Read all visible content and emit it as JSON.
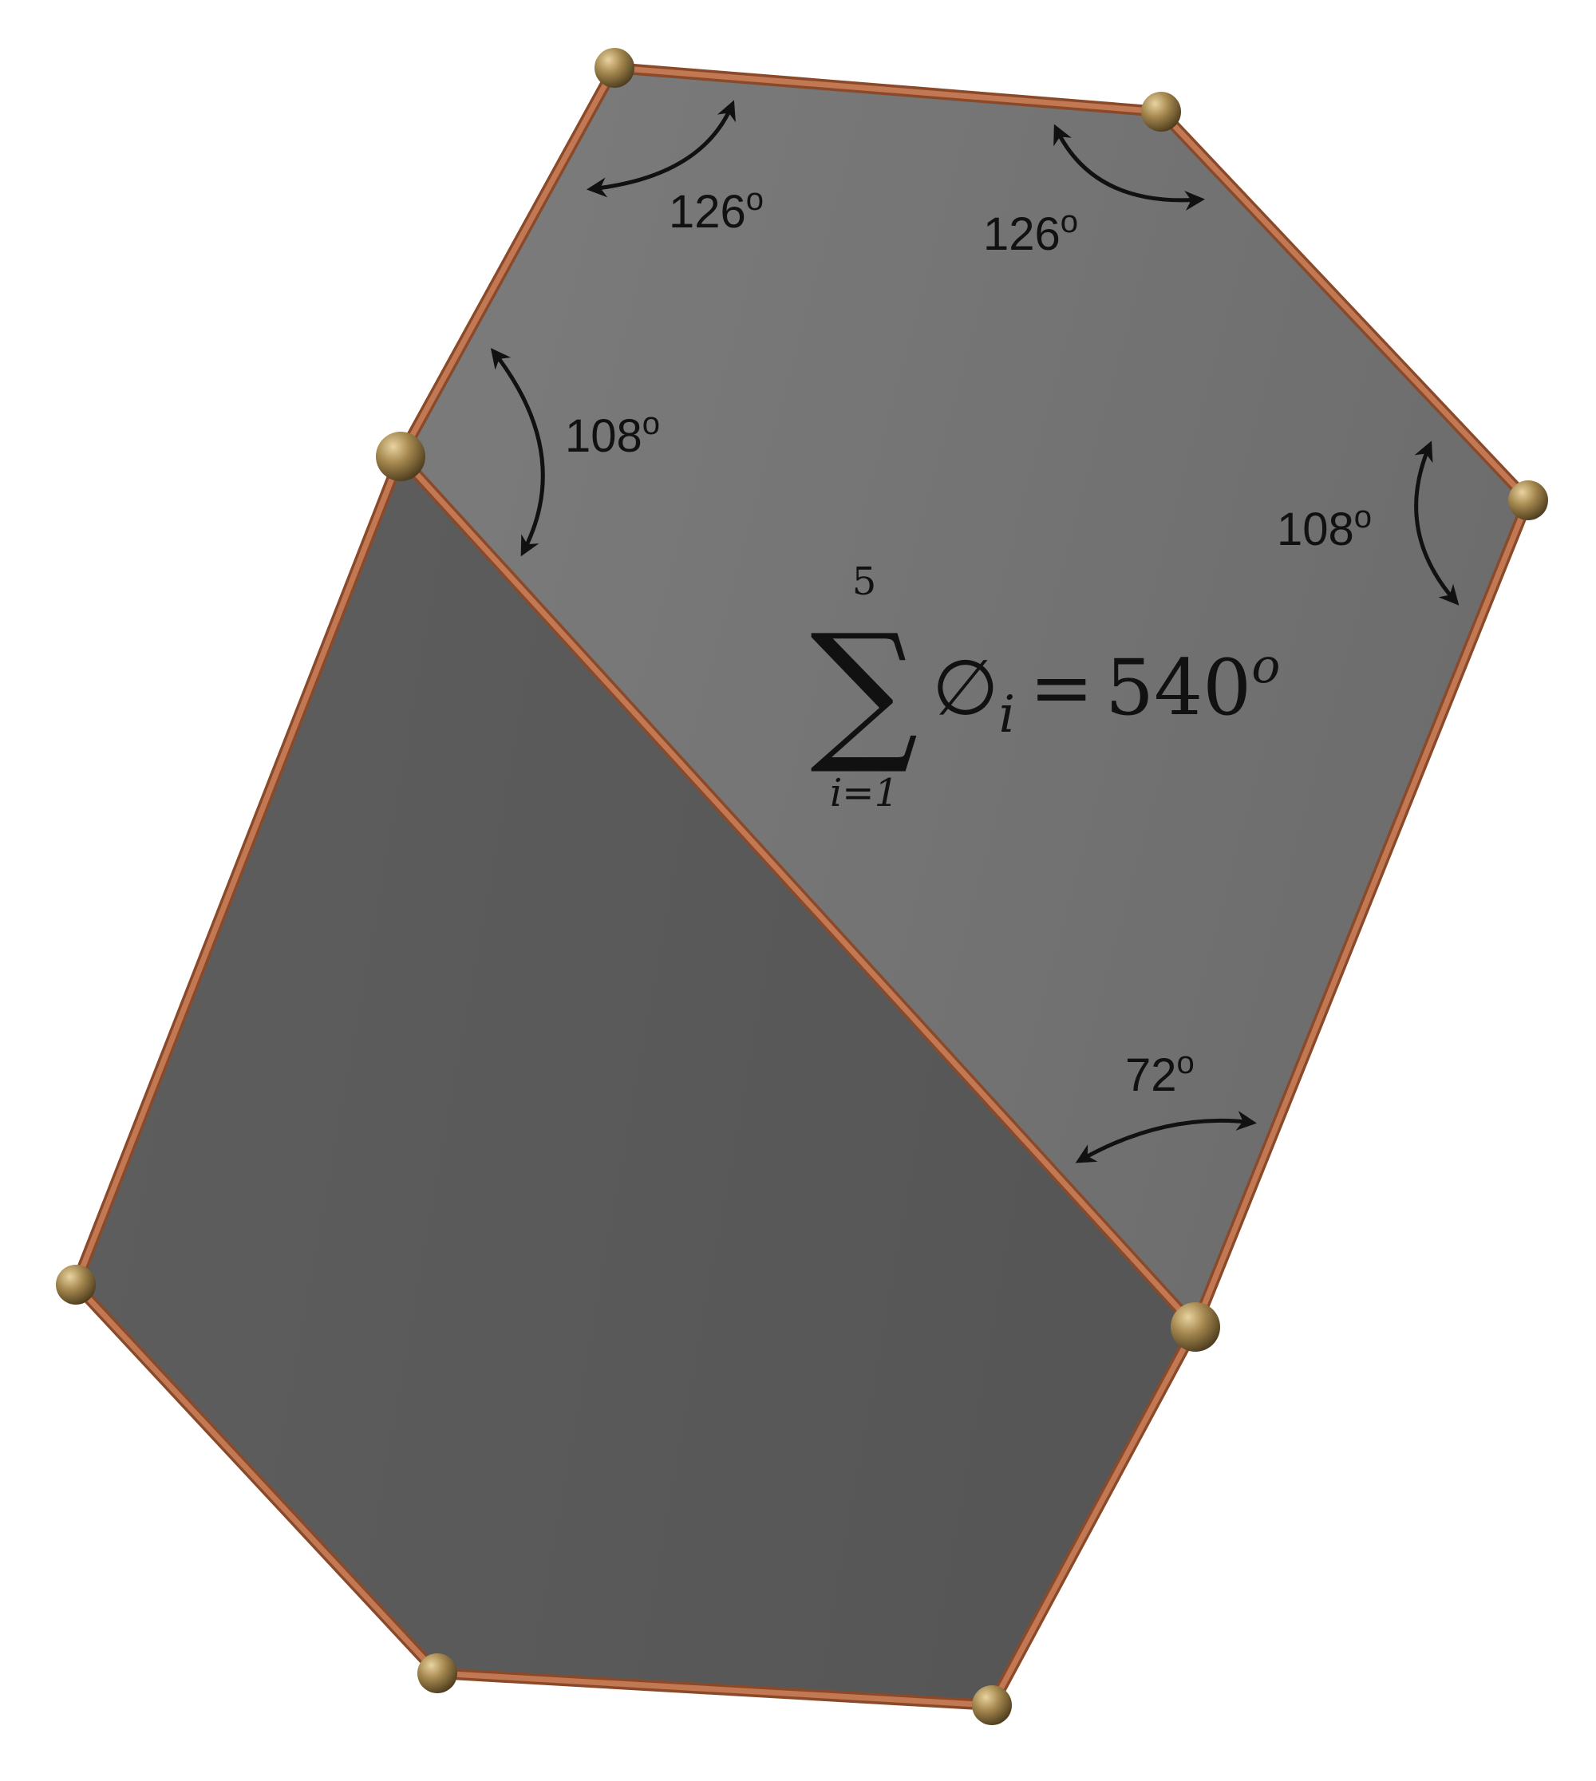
{
  "angles": {
    "top_left": {
      "value": "126",
      "degree": "o"
    },
    "top_right": {
      "value": "126",
      "degree": "o"
    },
    "left": {
      "value": "108",
      "degree": "o"
    },
    "right": {
      "value": "108",
      "degree": "o"
    },
    "bottom": {
      "value": "72",
      "degree": "o"
    }
  },
  "formula": {
    "sum_symbol": "∑",
    "upper_limit": "5",
    "lower_limit": "i=1",
    "term": "∅",
    "term_subscript": "i",
    "equals": "=",
    "result": "540",
    "result_superscript": "o"
  },
  "colors": {
    "upper_face": "#767676",
    "lower_face": "#5a5a5a",
    "edge": "#b46a42",
    "edge_highlight": "#e0a47e",
    "vertex": "#9a7f4f",
    "arrow": "#111111"
  }
}
